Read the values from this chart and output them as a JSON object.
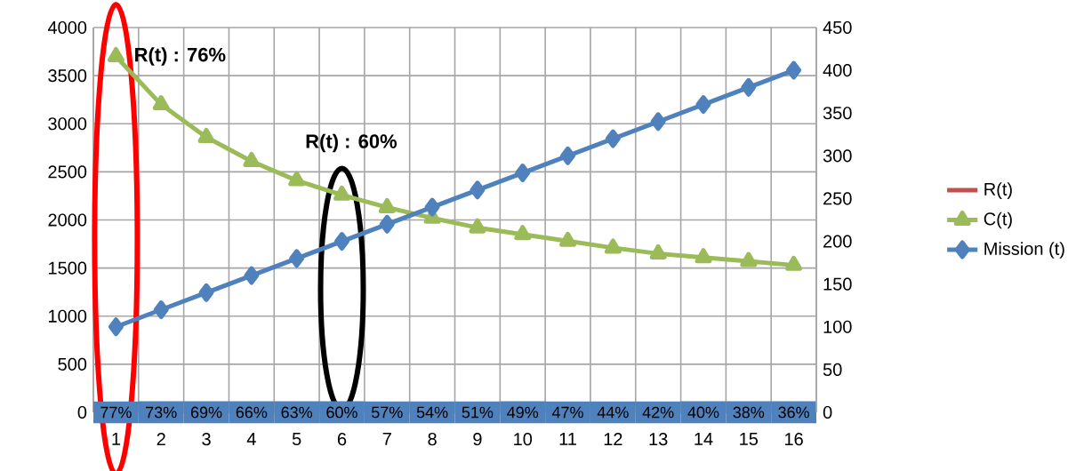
{
  "chart_data": {
    "type": "line",
    "categories": [
      "1",
      "2",
      "3",
      "4",
      "5",
      "6",
      "7",
      "8",
      "9",
      "10",
      "11",
      "12",
      "13",
      "14",
      "15",
      "16"
    ],
    "series": [
      {
        "name": "R(t)",
        "color": "#c0504d",
        "marker": "none",
        "values": [
          null,
          null,
          null,
          null,
          null,
          null,
          null,
          null,
          null,
          null,
          null,
          null,
          null,
          null,
          null,
          null
        ],
        "value_labels": [
          "77%",
          "73%",
          "69%",
          "66%",
          "63%",
          "60%",
          "57%",
          "54%",
          "51%",
          "49%",
          "47%",
          "44%",
          "42%",
          "40%",
          "38%",
          "36%"
        ]
      },
      {
        "name": "C(t)",
        "color": "#9bbb59",
        "marker": "triangle",
        "values": [
          3700,
          3200,
          2860,
          2610,
          2410,
          2260,
          2130,
          2020,
          1920,
          1850,
          1780,
          1710,
          1650,
          1610,
          1570,
          1530
        ]
      },
      {
        "name": "Mission (t)",
        "color": "#4f81bd",
        "marker": "diamond",
        "axis": "y2",
        "values": [
          100,
          120,
          140,
          160,
          180,
          200,
          220,
          240,
          260,
          280,
          300,
          320,
          340,
          360,
          380,
          400
        ]
      }
    ],
    "ylim": [
      0,
      4000
    ],
    "yticks": [
      0,
      500,
      1000,
      1500,
      2000,
      2500,
      3000,
      3500,
      4000
    ],
    "y2lim": [
      0,
      450
    ],
    "y2ticks": [
      0,
      50,
      100,
      150,
      200,
      250,
      300,
      350,
      400,
      450
    ],
    "grid": true,
    "legend": "right",
    "annotations": [
      {
        "text": "R(t) : 76%",
        "x": "1",
        "y": 3700
      },
      "R(t) : 60%"
    ]
  }
}
